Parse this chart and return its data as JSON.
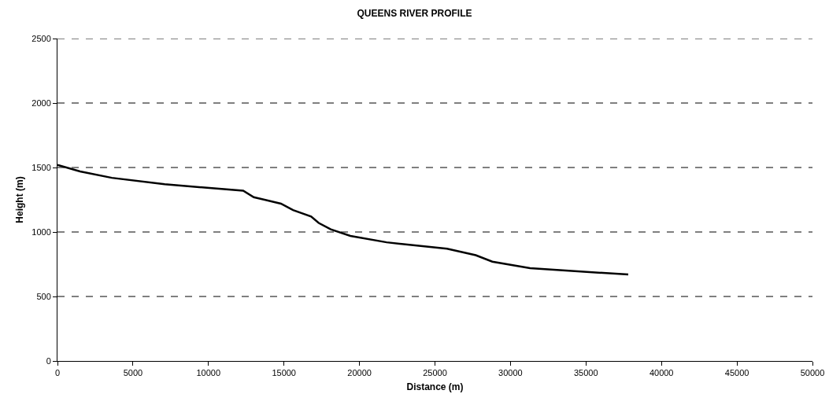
{
  "chart_data": {
    "type": "line",
    "title": "QUEENS RIVER PROFILE",
    "xlabel": "Distance (m)",
    "ylabel": "Height (m)",
    "x": [
      0,
      1500,
      3600,
      7100,
      12300,
      13000,
      14800,
      15600,
      16800,
      17300,
      18100,
      19400,
      21800,
      25800,
      27700,
      28800,
      31300,
      37800
    ],
    "series": [
      {
        "color": "#000000",
        "values": [
          1520,
          1470,
          1420,
          1370,
          1320,
          1270,
          1220,
          1170,
          1120,
          1070,
          1020,
          970,
          920,
          870,
          820,
          770,
          720,
          670
        ]
      }
    ],
    "xlim": [
      0,
      50000
    ],
    "xticks": [
      0,
      5000,
      10000,
      15000,
      20000,
      25000,
      30000,
      35000,
      40000,
      45000,
      50000
    ],
    "ylim": [
      0,
      2500
    ],
    "yticks": [
      0,
      500,
      1000,
      1500,
      2000,
      2500
    ],
    "grid": "y",
    "marker": "none",
    "line_style": "solid"
  }
}
